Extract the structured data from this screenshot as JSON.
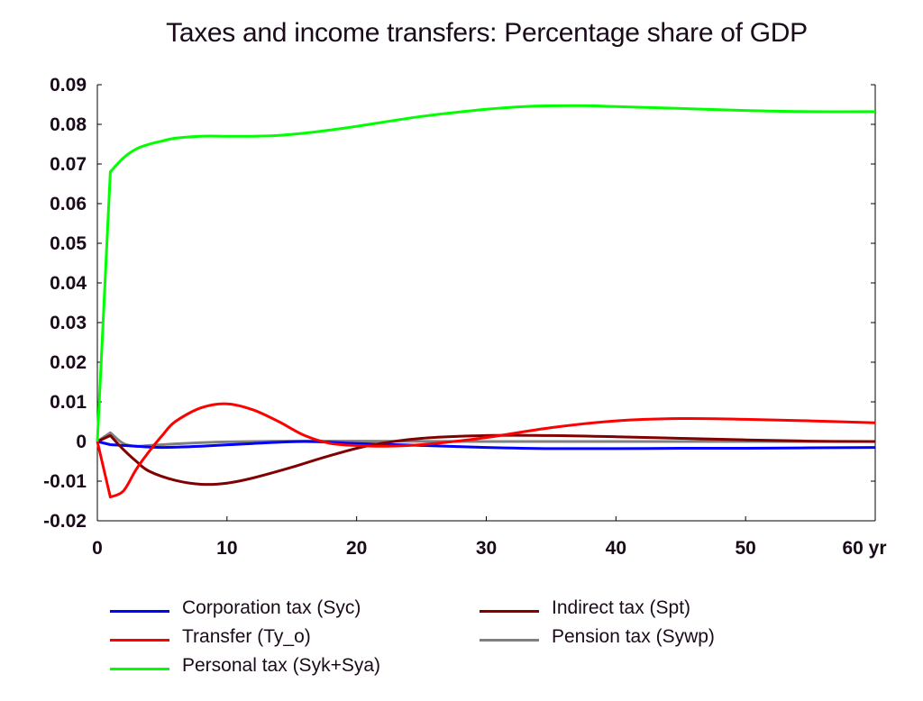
{
  "chart_data": {
    "type": "line",
    "title": "Taxes and income transfers: Percentage share of GDP",
    "xlabel": "",
    "ylabel": "",
    "xlim": [
      0,
      60
    ],
    "ylim": [
      -0.02,
      0.09
    ],
    "x_ticks": [
      "0",
      "10",
      "20",
      "30",
      "40",
      "50",
      "60 yr"
    ],
    "y_ticks": [
      "-0.02",
      "-0.01",
      "0",
      "0.01",
      "0.02",
      "0.03",
      "0.04",
      "0.05",
      "0.06",
      "0.07",
      "0.08",
      "0.09"
    ],
    "grid": false,
    "legend_position": "bottom",
    "series": [
      {
        "name": "Corporation tax (Syc)",
        "color": "#0000ff",
        "x": [
          0,
          1,
          2,
          3,
          5,
          8,
          12,
          16,
          20,
          25,
          30,
          35,
          40,
          45,
          50,
          55,
          60
        ],
        "y": [
          0,
          -0.0008,
          -0.001,
          -0.0012,
          -0.0015,
          -0.0012,
          -0.0005,
          0,
          -0.0005,
          -0.001,
          -0.0015,
          -0.0018,
          -0.0018,
          -0.0017,
          -0.0017,
          -0.0016,
          -0.0015
        ]
      },
      {
        "name": "Indirect tax (Spt)",
        "color": "#800000",
        "x": [
          0,
          1,
          2,
          3,
          4,
          6,
          8,
          10,
          12,
          15,
          18,
          21,
          25,
          30,
          35,
          40,
          45,
          50,
          55,
          60
        ],
        "y": [
          0,
          0.0015,
          -0.002,
          -0.005,
          -0.0075,
          -0.0098,
          -0.0108,
          -0.0105,
          -0.0092,
          -0.0065,
          -0.0035,
          -0.001,
          0.0008,
          0.0015,
          0.0015,
          0.0012,
          0.0008,
          0.0004,
          0.0001,
          0
        ]
      },
      {
        "name": "Transfer (Ty_o)",
        "color": "#ff0000",
        "x": [
          0,
          1,
          2,
          3,
          4,
          5,
          6,
          8,
          10,
          12,
          14,
          16,
          18,
          20,
          22,
          25,
          30,
          35,
          40,
          45,
          50,
          55,
          60
        ],
        "y": [
          0,
          -0.014,
          -0.0125,
          -0.007,
          -0.0025,
          0.0015,
          0.005,
          0.0085,
          0.0095,
          0.008,
          0.005,
          0.0015,
          -0.0005,
          -0.001,
          -0.0012,
          -0.0008,
          0.001,
          0.0035,
          0.0052,
          0.0058,
          0.0056,
          0.0052,
          0.0047
        ]
      },
      {
        "name": "Pension tax (Sywp)",
        "color": "#808080",
        "x": [
          0,
          1,
          2,
          3,
          4,
          6,
          8,
          10,
          15,
          20,
          30,
          40,
          50,
          60
        ],
        "y": [
          0,
          0.0022,
          -0.0005,
          -0.0012,
          -0.001,
          -0.0006,
          -0.0003,
          -0.0001,
          0.0001,
          0.0001,
          0,
          0,
          0,
          0
        ]
      },
      {
        "name": "Personal tax (Syk+Sya)",
        "color": "#00ff00",
        "x": [
          0,
          1,
          2,
          3,
          4,
          5,
          6,
          8,
          10,
          12,
          14,
          16,
          18,
          20,
          25,
          30,
          33,
          37,
          40,
          45,
          50,
          55,
          60
        ],
        "y": [
          0,
          0.068,
          0.0715,
          0.0738,
          0.075,
          0.0758,
          0.0765,
          0.077,
          0.077,
          0.077,
          0.0772,
          0.0778,
          0.0786,
          0.0795,
          0.082,
          0.0838,
          0.0845,
          0.0847,
          0.0845,
          0.084,
          0.0835,
          0.0832,
          0.0832
        ]
      }
    ],
    "legend_layout": [
      {
        "series": 0,
        "col": 0,
        "row": 0
      },
      {
        "series": 1,
        "col": 1,
        "row": 0
      },
      {
        "series": 2,
        "col": 0,
        "row": 1
      },
      {
        "series": 3,
        "col": 1,
        "row": 1
      },
      {
        "series": 4,
        "col": 0,
        "row": 2
      }
    ]
  }
}
